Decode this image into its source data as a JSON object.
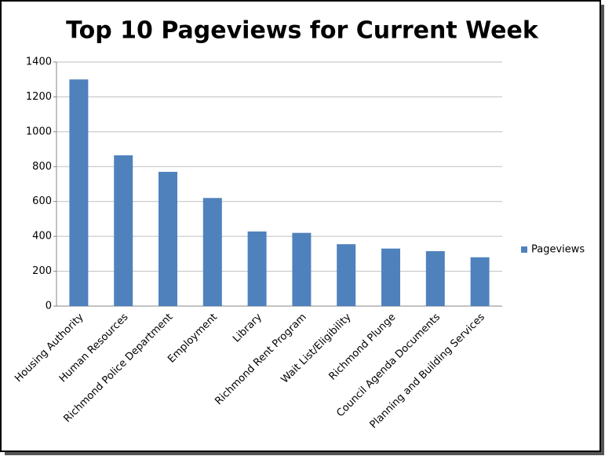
{
  "chart_data": {
    "type": "bar",
    "title": "Top 10 Pageviews for Current Week",
    "categories": [
      "Housing Authority",
      "Human Resources",
      "Richmond Police Department",
      "Employment",
      "Library",
      "Richmond Rent Program",
      "Wait List/Eligibility",
      "Richmond Plunge",
      "Council Agenda Documents",
      "Planning and Building Services"
    ],
    "series": [
      {
        "name": "Pageviews",
        "color": "#4f81bd",
        "values": [
          1300,
          865,
          770,
          620,
          428,
          420,
          355,
          330,
          315,
          280
        ]
      }
    ],
    "ylim": [
      0,
      1400
    ],
    "yticks": [
      0,
      200,
      400,
      600,
      800,
      1000,
      1200,
      1400
    ],
    "grid": true,
    "legend": "right"
  }
}
